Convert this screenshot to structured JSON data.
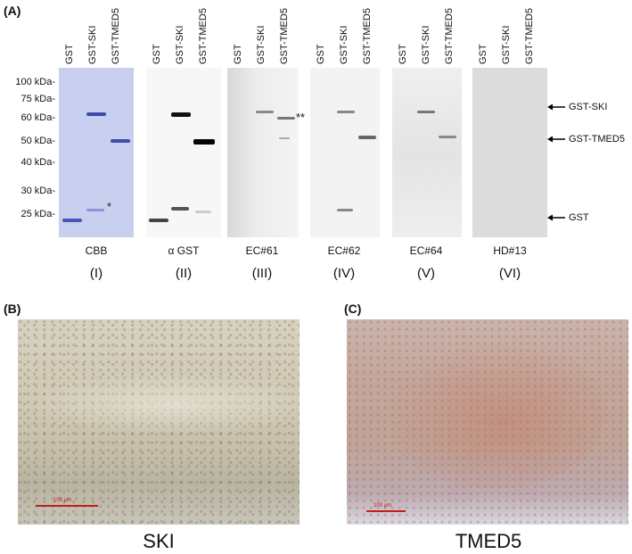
{
  "panels": {
    "a": "(A)",
    "b": "(B)",
    "c": "(C)"
  },
  "lanes": [
    "GST",
    "GST-SKI",
    "GST-TMED5"
  ],
  "mw_markers": [
    "100 kDa-",
    "75 kDa-",
    "60 kDa-",
    "50 kDa-",
    "40 kDa-",
    "30 kDa-",
    "25 kDa-"
  ],
  "blots": [
    {
      "name": "CBB",
      "roman": "(I)"
    },
    {
      "name": "α GST",
      "roman": "(II)"
    },
    {
      "name": "EC#61",
      "roman": "(III)"
    },
    {
      "name": "EC#62",
      "roman": "(IV)"
    },
    {
      "name": "EC#64",
      "roman": "(V)"
    },
    {
      "name": "HD#13",
      "roman": "(VI)"
    }
  ],
  "annotations": {
    "star": "*",
    "double_star": "**"
  },
  "arrows": [
    "GST-SKI",
    "GST-TMED5",
    "GST"
  ],
  "micrographs": {
    "b_caption": "SKI",
    "c_caption": "TMED5",
    "b_scale": "100 μm",
    "c_scale": "100 μm"
  },
  "colors": {
    "cbb_bg": "#c9cfef",
    "cbb_band": "#4a55b8",
    "blot_gray": "#e6e6e6",
    "blot_light": "#f1f1f1",
    "scale_red": "#c0201a",
    "ski_tissue": "#c2bca8",
    "tmed5_tissue": "#c7a89a"
  }
}
